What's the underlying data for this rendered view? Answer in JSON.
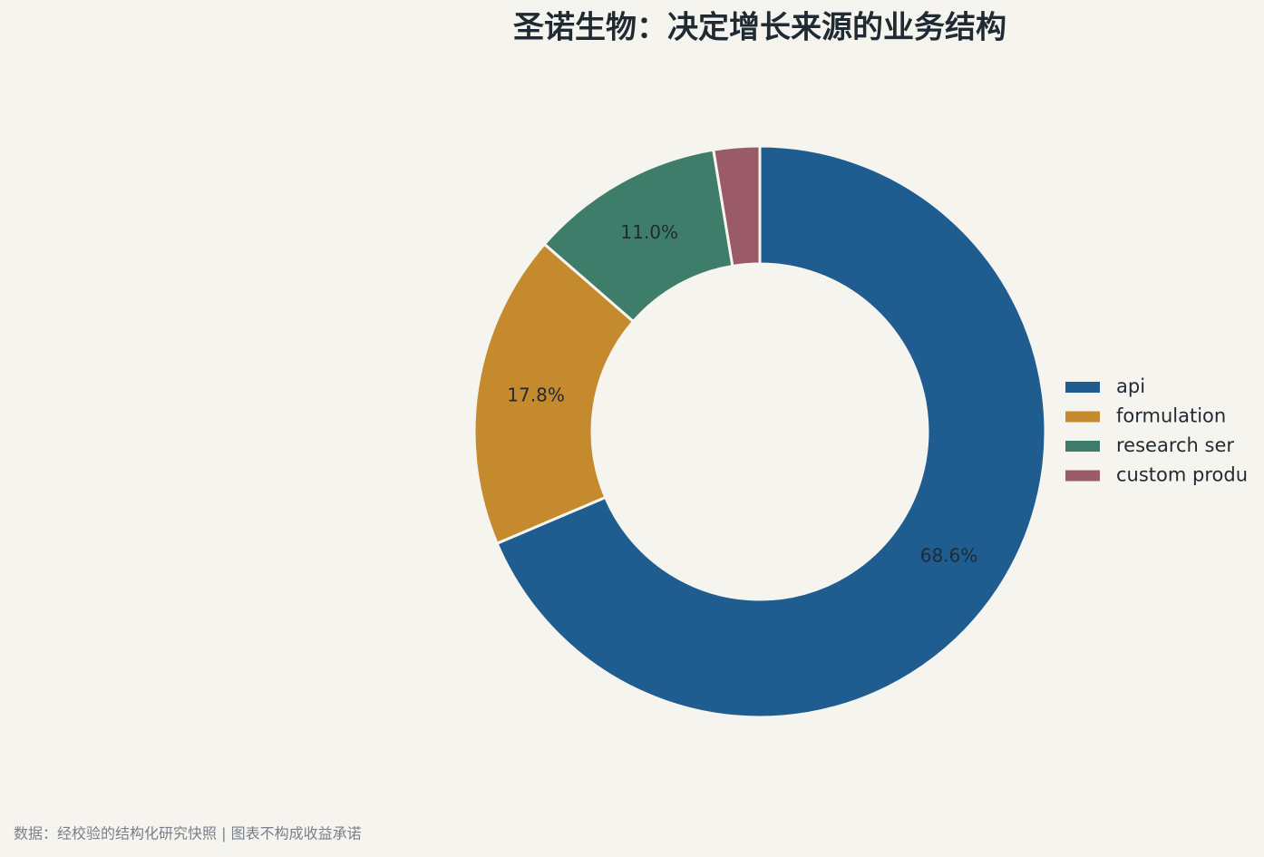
{
  "chart_data": {
    "type": "donut",
    "title": "圣诺生物：决定增长来源的业务结构",
    "categories": [
      "api",
      "formulation",
      "research ser",
      "custom produ"
    ],
    "values": [
      68.6,
      17.8,
      11.0,
      2.6
    ],
    "value_labels": [
      "68.6%",
      "17.8%",
      "11.0%",
      null
    ],
    "colors": [
      "#1f5c8f",
      "#c68a2e",
      "#3f7d6b",
      "#9b5a67"
    ],
    "legend": "right",
    "footnote": "数据：经校验的结构化研究快照 | 图表不构成收益承诺"
  }
}
